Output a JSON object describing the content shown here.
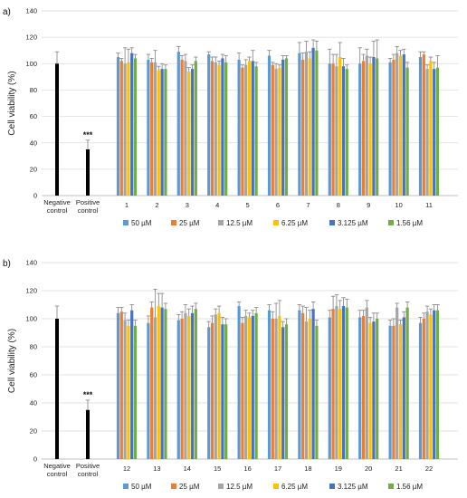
{
  "colors": {
    "control": "#000000",
    "s50": "#5b9bd5",
    "s25": "#ed7d31",
    "s12_5": "#a5a5a5",
    "s6_25": "#ffc000",
    "s3_125": "#4472c4",
    "s1_56": "#70ad47",
    "grid": "#d9d9d9",
    "axis": "#bfbfbf",
    "error": "#808080"
  },
  "chart_data": [
    {
      "type": "bar",
      "panel_label": "a)",
      "ylabel": "Cell viability (%)",
      "ylim": [
        0,
        140
      ],
      "yticks": [
        0,
        20,
        40,
        60,
        80,
        100,
        120,
        140
      ],
      "grid": true,
      "legend_position": "bottom",
      "controls": [
        {
          "label_lines": [
            "Negative",
            "control"
          ],
          "value": 100,
          "error": 9,
          "significance": ""
        },
        {
          "label_lines": [
            "Positive",
            "control"
          ],
          "value": 35,
          "error": 7,
          "significance": "***"
        }
      ],
      "categories": [
        "1",
        "2",
        "3",
        "4",
        "5",
        "6",
        "7",
        "8",
        "9",
        "10",
        "11"
      ],
      "series": [
        {
          "name": "50 µM",
          "color_key": "s50",
          "values": [
            105,
            103,
            109,
            107,
            103,
            106,
            108,
            100,
            100,
            101,
            105
          ],
          "errors": [
            3,
            4,
            4,
            2,
            5,
            4,
            8,
            11,
            12,
            3,
            4
          ]
        },
        {
          "name": "25 µM",
          "color_key": "s25",
          "values": [
            102,
            101,
            103,
            102,
            97,
            99,
            103,
            100,
            102,
            103,
            107
          ],
          "errors": [
            2,
            3,
            3,
            3,
            2,
            2,
            5,
            7,
            5,
            4,
            2
          ]
        },
        {
          "name": "12.5 µM",
          "color_key": "s12_5",
          "values": [
            100,
            101,
            102,
            101,
            99,
            96,
            109,
            98,
            106,
            108,
            96
          ],
          "errors": [
            12,
            9,
            5,
            4,
            4,
            4,
            8,
            9,
            5,
            5,
            3
          ]
        },
        {
          "name": "6.25 µM",
          "color_key": "s6_25",
          "values": [
            101,
            95,
            94,
            99,
            102,
            97,
            104,
            105,
            100,
            106,
            102
          ],
          "errors": [
            10,
            3,
            3,
            3,
            3,
            2,
            5,
            11,
            5,
            4,
            3
          ]
        },
        {
          "name": "3.125 µM",
          "color_key": "s3_125",
          "values": [
            108,
            96,
            96,
            104,
            102,
            103,
            112,
            98,
            105,
            107,
            96
          ],
          "errors": [
            4,
            4,
            3,
            3,
            8,
            3,
            6,
            6,
            12,
            4,
            5
          ]
        },
        {
          "name": "1.56 µM",
          "color_key": "s1_56",
          "values": [
            104,
            96,
            102,
            101,
            98,
            104,
            110,
            96,
            104,
            97,
            97
          ],
          "errors": [
            3,
            3,
            3,
            5,
            3,
            2,
            7,
            3,
            14,
            4,
            9
          ]
        }
      ]
    },
    {
      "type": "bar",
      "panel_label": "b)",
      "ylabel": "Cell viability (%)",
      "ylim": [
        0,
        140
      ],
      "yticks": [
        0,
        20,
        40,
        60,
        80,
        100,
        120,
        140
      ],
      "grid": true,
      "legend_position": "bottom",
      "controls": [
        {
          "label_lines": [
            "Negative",
            "control"
          ],
          "value": 100,
          "error": 9,
          "significance": ""
        },
        {
          "label_lines": [
            "Positive",
            "control"
          ],
          "value": 35,
          "error": 7,
          "significance": "***"
        }
      ],
      "categories": [
        "12",
        "13",
        "14",
        "15",
        "16",
        "17",
        "18",
        "19",
        "20",
        "21",
        "22"
      ],
      "series": [
        {
          "name": "50 µM",
          "color_key": "s50",
          "values": [
            104,
            97,
            99,
            94,
            109,
            106,
            106,
            101,
            101,
            95,
            97
          ],
          "errors": [
            4,
            5,
            4,
            4,
            3,
            4,
            4,
            5,
            5,
            4,
            4
          ]
        },
        {
          "name": "25 µM",
          "color_key": "s25",
          "values": [
            105,
            108,
            100,
            97,
            97,
            100,
            104,
            107,
            102,
            95,
            100
          ],
          "errors": [
            3,
            4,
            5,
            5,
            4,
            5,
            5,
            9,
            4,
            5,
            4
          ]
        },
        {
          "name": "12.5 µM",
          "color_key": "s12_5",
          "values": [
            99,
            101,
            104,
            103,
            102,
            100,
            98,
            109,
            108,
            108,
            105
          ],
          "errors": [
            5,
            20,
            6,
            4,
            4,
            11,
            10,
            8,
            5,
            3,
            4
          ]
        },
        {
          "name": "6.25 µM",
          "color_key": "s6_25",
          "values": [
            95,
            109,
            102,
            104,
            101,
            102,
            100,
            107,
            97,
            96,
            103
          ],
          "errors": [
            4,
            9,
            5,
            5,
            3,
            11,
            6,
            6,
            4,
            3,
            4
          ]
        },
        {
          "name": "3.125 µM",
          "color_key": "s3_125",
          "values": [
            106,
            108,
            104,
            96,
            102,
            94,
            107,
            109,
            98,
            101,
            106
          ],
          "errors": [
            4,
            10,
            5,
            5,
            4,
            4,
            5,
            6,
            6,
            4,
            4
          ]
        },
        {
          "name": "1.56 µM",
          "color_key": "s1_56",
          "values": [
            95,
            107,
            107,
            96,
            104,
            96,
            95,
            108,
            100,
            108,
            106
          ],
          "errors": [
            4,
            4,
            4,
            4,
            4,
            4,
            4,
            6,
            4,
            4,
            4
          ]
        }
      ]
    }
  ]
}
